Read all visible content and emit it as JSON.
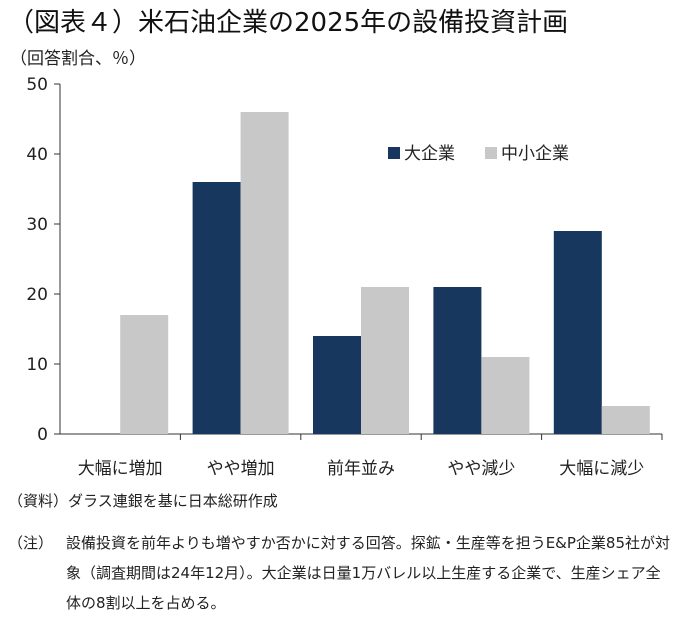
{
  "title": "（図表４）米石油企業の2025年の設備投資計画",
  "unit_label": "（回答割合、％）",
  "source": "（資料）ダラス連銀を基に日本総研作成",
  "note": {
    "label": "（注）",
    "text": "設備投資を前年よりも増やすか否かに対する回答。探鉱・生産等を担うE&P企業85社が対象（調査期間は24年12月）。大企業は日量1万バレル以上生産する企業で、生産シェア全体の8割以上を占める。"
  },
  "chart_data": {
    "type": "bar",
    "categories": [
      "大幅に増加",
      "やや増加",
      "前年並み",
      "やや減少",
      "大幅に減少"
    ],
    "series": [
      {
        "name": "大企業",
        "color": "#17375e",
        "values": [
          0,
          36,
          14,
          21,
          29
        ]
      },
      {
        "name": "中小企業",
        "color": "#c8c8c8",
        "values": [
          17,
          46,
          21,
          11,
          4
        ]
      }
    ],
    "ylim": [
      0,
      50
    ],
    "yticks": [
      0,
      10,
      20,
      30,
      40,
      50
    ],
    "grid": false,
    "legend_position": "top-right"
  }
}
